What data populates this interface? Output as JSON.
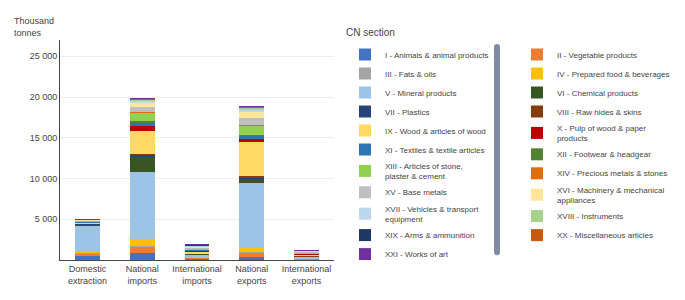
{
  "chart_data": {
    "type": "bar",
    "stacked": true,
    "ylabel": "Thousand\ntonnes",
    "legend_title": "CN section",
    "legend": "upper right",
    "grid": true,
    "categories": [
      "Domestic\nextraction",
      "National\nimports",
      "International\nimports",
      "National\nexports",
      "International\nexports"
    ],
    "ylim": [
      0,
      27000
    ],
    "yticks": [
      {
        "value": 0,
        "label": ""
      },
      {
        "value": 5000,
        "label": "5 000"
      },
      {
        "value": 10000,
        "label": "10 000"
      },
      {
        "value": 15000,
        "label": "15 000"
      },
      {
        "value": 20000,
        "label": "20 000"
      },
      {
        "value": 25000,
        "label": "25 000"
      }
    ],
    "series": [
      {
        "name": "I - Animals & animal products",
        "color": "#4472C4",
        "values": [
          500,
          900,
          150,
          400,
          60
        ]
      },
      {
        "name": "II - Vegetable products",
        "color": "#ED7D31",
        "values": [
          300,
          700,
          120,
          500,
          80
        ]
      },
      {
        "name": "III - Fats & oils",
        "color": "#A5A5A5",
        "values": [
          80,
          150,
          50,
          100,
          30
        ]
      },
      {
        "name": "IV - Prepared food & beverages",
        "color": "#FFC000",
        "values": [
          200,
          800,
          100,
          500,
          60
        ]
      },
      {
        "name": "V - Mineral products",
        "color": "#9DC3E6",
        "values": [
          3200,
          8200,
          250,
          8000,
          150
        ]
      },
      {
        "name": "VI - Chemical products",
        "color": "#375623",
        "values": [
          100,
          2000,
          80,
          500,
          40
        ]
      },
      {
        "name": "VII - Plastics",
        "color": "#264478",
        "values": [
          50,
          150,
          40,
          150,
          20
        ]
      },
      {
        "name": "VIII - Raw hides & skins",
        "color": "#843C0C",
        "values": [
          40,
          150,
          40,
          100,
          20
        ]
      },
      {
        "name": "IX - Wood & articles of wood",
        "color": "#FFD966",
        "values": [
          150,
          2800,
          200,
          4200,
          250
        ]
      },
      {
        "name": "X - Pulp of wood & paper\nproducts",
        "color": "#C00000",
        "values": [
          40,
          600,
          80,
          450,
          40
        ]
      },
      {
        "name": "XI - Textiles & textile articles",
        "color": "#2E75B6",
        "values": [
          80,
          400,
          150,
          400,
          80
        ]
      },
      {
        "name": "XII - Footwear & headgear",
        "color": "#548235",
        "values": [
          30,
          150,
          40,
          100,
          20
        ]
      },
      {
        "name": "XIII - Articles of stone,\nplaster & cement",
        "color": "#92D050",
        "values": [
          40,
          1100,
          100,
          1100,
          80
        ]
      },
      {
        "name": "XIV - Precious metals & stones",
        "color": "#E36C09",
        "values": [
          20,
          80,
          40,
          80,
          20
        ]
      },
      {
        "name": "XV - Base metals",
        "color": "#BFBFBF",
        "values": [
          40,
          600,
          80,
          900,
          50
        ]
      },
      {
        "name": "XVI - Machinery & mechanical\nappliances",
        "color": "#FFE699",
        "values": [
          40,
          500,
          150,
          700,
          80
        ]
      },
      {
        "name": "XVII - Vehicles & transport\nequipment",
        "color": "#BDD7EE",
        "values": [
          30,
          250,
          80,
          350,
          40
        ]
      },
      {
        "name": "XVIII - Instruments",
        "color": "#A9D18E",
        "values": [
          20,
          150,
          80,
          180,
          40
        ]
      },
      {
        "name": "XIX - Arms & ammunition",
        "color": "#1F3864",
        "values": [
          10,
          40,
          20,
          40,
          10
        ]
      },
      {
        "name": "XX - Miscellaneous articles",
        "color": "#C55A11",
        "values": [
          20,
          80,
          40,
          80,
          20
        ]
      },
      {
        "name": "XXI - Works of art",
        "color": "#7030A0",
        "values": [
          10,
          40,
          20,
          40,
          10
        ]
      }
    ]
  }
}
